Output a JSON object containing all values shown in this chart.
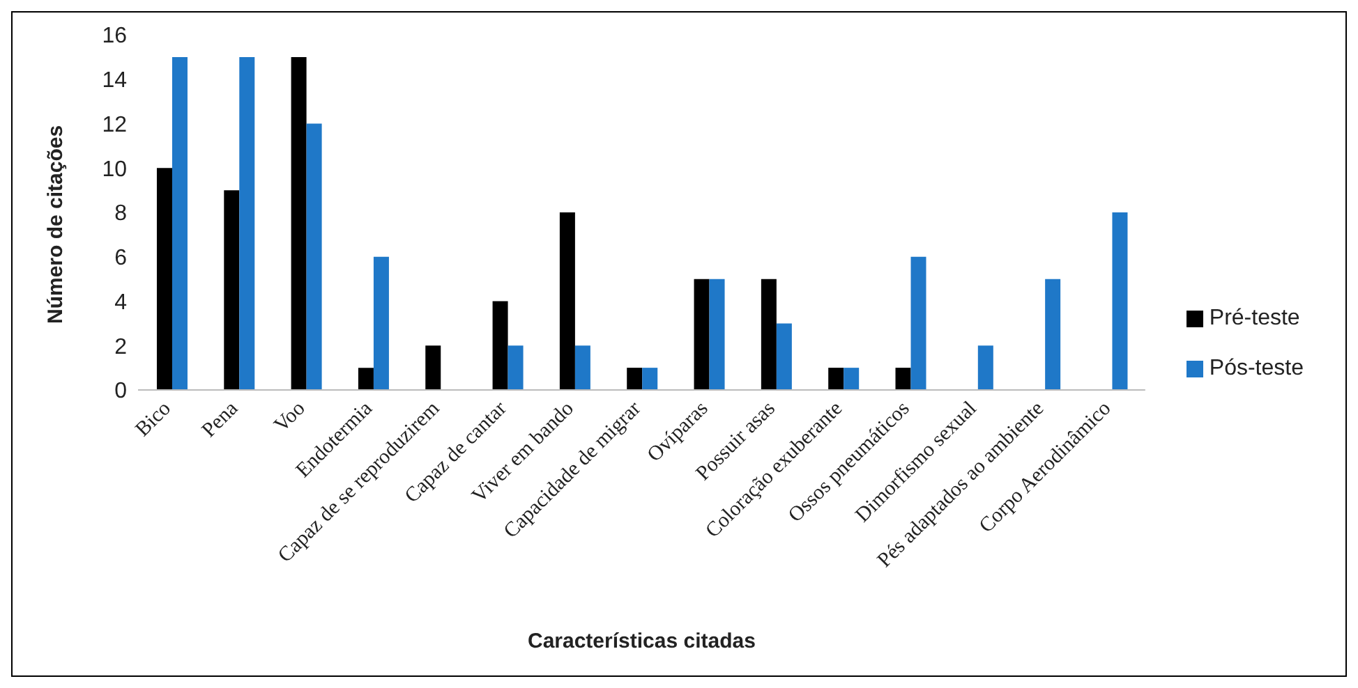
{
  "chart_data": {
    "type": "bar",
    "xlabel": "Características citadas",
    "ylabel": "Número de citações",
    "categories": [
      "Bico",
      "Pena",
      "Voo",
      "Endotermia",
      "Capaz de se reproduzirem",
      "Capaz de cantar",
      "Viver em bando",
      "Capacidade de migrar",
      "Ovíparas",
      "Possuir asas",
      "Coloração exuberante",
      "Ossos pneumáticos",
      "Dimorfismo sexual",
      "Pés adaptados ao ambiente",
      "Corpo Aerodinâmico"
    ],
    "series": [
      {
        "name": "Pré-teste",
        "color": "#000000",
        "values": [
          10,
          9,
          15,
          1,
          2,
          4,
          8,
          1,
          5,
          5,
          1,
          1,
          null,
          null,
          null
        ]
      },
      {
        "name": "Pós-teste",
        "color": "#1f78c8",
        "values": [
          15,
          15,
          12,
          6,
          null,
          2,
          2,
          1,
          5,
          3,
          1,
          6,
          2,
          5,
          8
        ]
      }
    ],
    "ylim": [
      0,
      16
    ],
    "yticks": [
      0,
      2,
      4,
      6,
      8,
      10,
      12,
      14,
      16
    ],
    "grid": false,
    "legend": "right"
  }
}
